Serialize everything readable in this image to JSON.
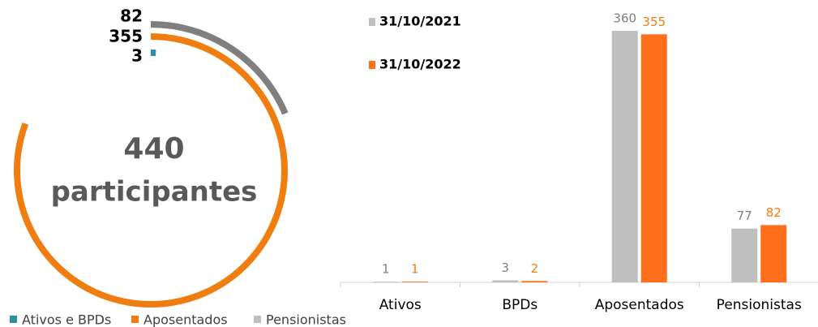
{
  "chart_data": [
    {
      "type": "radial_bar",
      "categories": [
        "Ativos e BPDs",
        "Aposentados",
        "Pensionistas"
      ],
      "values": [
        3,
        355,
        82
      ],
      "colors": [
        "#2e8fa0",
        "#f07d0f",
        "#7f7f7f"
      ],
      "legend_colors": [
        "#2e8fa0",
        "#f07d0f",
        "#bfbfbf"
      ],
      "total": 440,
      "center_label": "participantes"
    },
    {
      "type": "bar",
      "categories": [
        "Ativos",
        "BPDs",
        "Aposentados",
        "Pensionistas"
      ],
      "series": [
        {
          "name": "31/10/2021",
          "color": "#bfbfbf",
          "label_color": "#7f7f7f",
          "values": [
            1,
            3,
            360,
            77
          ]
        },
        {
          "name": "31/10/2022",
          "color": "#ff6f1c",
          "label_color": "#f07d0f",
          "values": [
            1,
            2,
            355,
            82
          ]
        }
      ],
      "ylim": [
        0,
        360
      ]
    }
  ]
}
